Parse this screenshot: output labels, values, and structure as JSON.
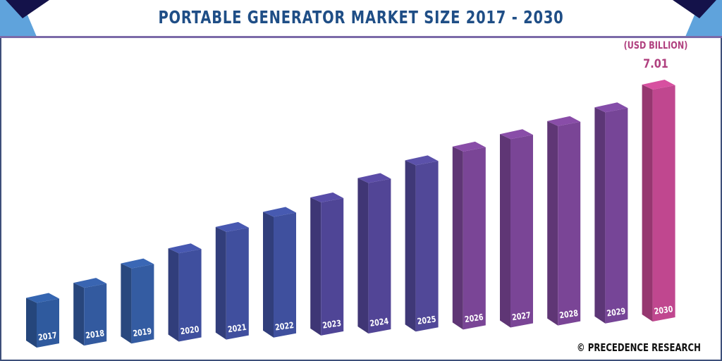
{
  "chart_data": {
    "type": "bar",
    "title": "PORTABLE GENERATOR MARKET SIZE 2017 - 2030",
    "unit_label": "(USD BILLION)",
    "categories": [
      "2017",
      "2018",
      "2019",
      "2020",
      "2021",
      "2022",
      "2023",
      "2024",
      "2025",
      "2026",
      "2027",
      "2028",
      "2029",
      "2030"
    ],
    "values": [
      1.42,
      1.81,
      2.33,
      2.72,
      3.3,
      3.69,
      4.06,
      4.58,
      5.05,
      5.4,
      5.71,
      6.04,
      6.39,
      7.01
    ],
    "data_labels": {
      "2030": "7.01"
    },
    "colors": [
      "#2f5a9e",
      "#335a9f",
      "#345ca2",
      "#3f4f9e",
      "#404f9e",
      "#3f509e",
      "#4f4596",
      "#524596",
      "#514898",
      "#7a4596",
      "#7a4596",
      "#7a4596",
      "#764597",
      "#c0478f"
    ],
    "grid": false,
    "axes_visible": false
  },
  "credit": "© PRECEDENCE RESEARCH"
}
